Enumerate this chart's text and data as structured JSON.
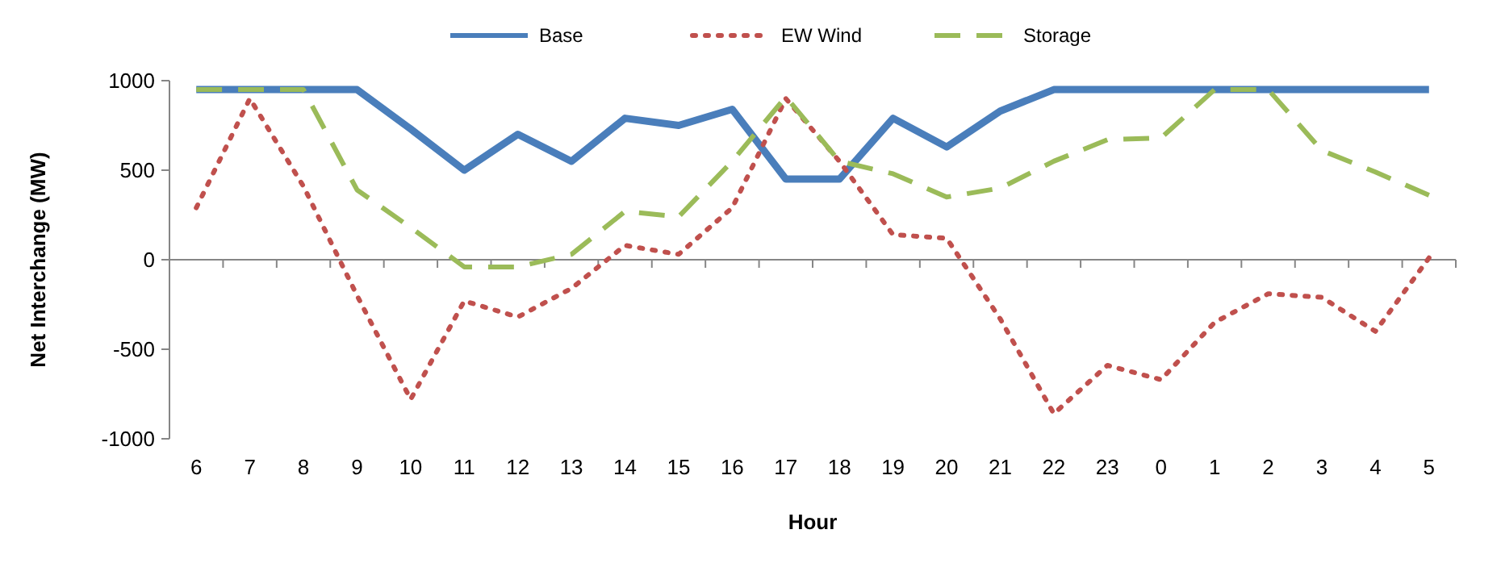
{
  "chart_data": {
    "type": "line",
    "xlabel": "Hour",
    "ylabel": "Net Interchange (MW)",
    "categories": [
      "6",
      "7",
      "8",
      "9",
      "10",
      "11",
      "12",
      "13",
      "14",
      "15",
      "16",
      "17",
      "18",
      "19",
      "20",
      "21",
      "22",
      "23",
      "0",
      "1",
      "2",
      "3",
      "4",
      "5"
    ],
    "series": [
      {
        "name": "Base",
        "color": "#4a7ebb",
        "line_style": "solid",
        "values": [
          950,
          950,
          950,
          950,
          730,
          500,
          700,
          550,
          790,
          750,
          840,
          450,
          450,
          790,
          630,
          830,
          950,
          950,
          950,
          950,
          950,
          950,
          950,
          950
        ]
      },
      {
        "name": "EW Wind",
        "color": "#c0504d",
        "line_style": "dotted",
        "values": [
          290,
          900,
          410,
          -200,
          -780,
          -230,
          -320,
          -160,
          80,
          30,
          290,
          900,
          550,
          140,
          120,
          -330,
          -860,
          -590,
          -670,
          -350,
          -190,
          -210,
          -400,
          10
        ]
      },
      {
        "name": "Storage",
        "color": "#9bbb59",
        "line_style": "dashed",
        "values": [
          950,
          950,
          950,
          390,
          180,
          -40,
          -40,
          30,
          270,
          240,
          550,
          910,
          550,
          480,
          350,
          400,
          550,
          670,
          680,
          950,
          950,
          610,
          490,
          360
        ]
      }
    ],
    "ylim": [
      -1000,
      1000
    ],
    "yticks": [
      -1000,
      -500,
      0,
      500,
      1000
    ],
    "legend": "top"
  }
}
